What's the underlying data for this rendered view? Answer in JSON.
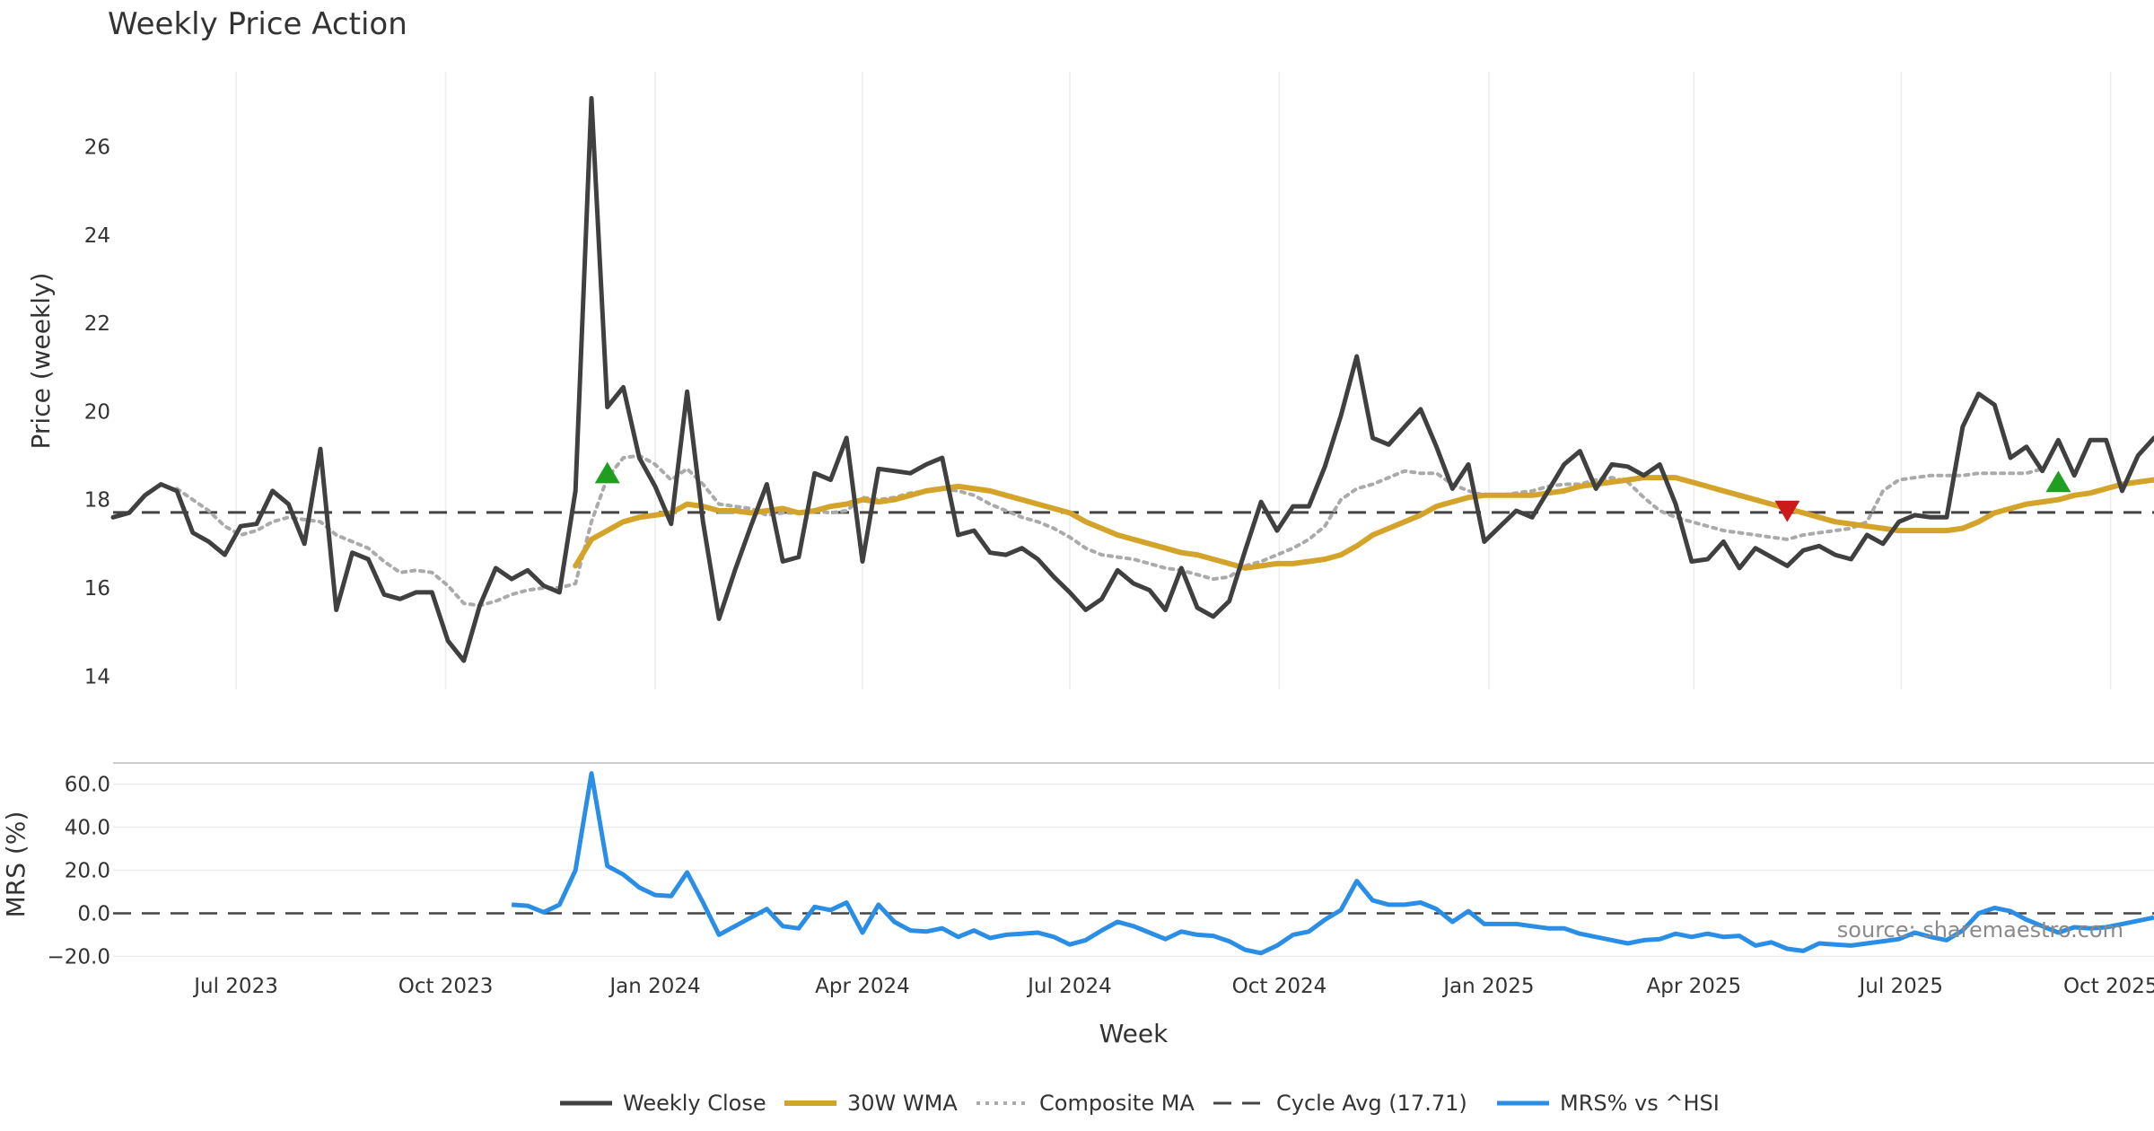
{
  "colors": {
    "close": "#404040",
    "wma": "#d4a32a",
    "composite": "#aaaaaa",
    "cycle": "#444444",
    "mrs": "#2a8ee6",
    "buy": "#1f9e1f",
    "sell": "#cc1a1a",
    "grid": "#ececec"
  },
  "chart_data": {
    "type": "line",
    "title": "Weekly Price Action",
    "ylabel": "Price (weekly)",
    "ylabel_bottom": "MRS (%)",
    "xlabel": "Week",
    "source": "source: sharemaestro.com",
    "start_date": "2023-05-08",
    "x_ticks": [
      "Jul 2023",
      "Oct 2023",
      "Jan 2024",
      "Apr 2024",
      "Jul 2024",
      "Oct 2024",
      "Jan 2025",
      "Apr 2025",
      "Jul 2025",
      "Oct 2025"
    ],
    "y_ticks": [
      "14",
      "16",
      "18",
      "20",
      "22",
      "24",
      "26"
    ],
    "y_ticks_bottom": [
      "−20.0",
      "0.0",
      "20.0",
      "40.0",
      "60.0"
    ],
    "ylim": [
      13.7,
      27.7
    ],
    "ylim_bottom": [
      -24,
      69
    ],
    "grid": true,
    "legend_position": "bottom-center",
    "legend": [
      "Weekly Close",
      "30W WMA",
      "Composite MA",
      "Cycle Avg (17.71)",
      "MRS% vs ^HSI"
    ],
    "cycle_avg": 17.71,
    "series": [
      {
        "name": "Weekly Close",
        "values": [
          17.6,
          17.7,
          18.1,
          18.35,
          18.2,
          17.25,
          17.05,
          16.75,
          17.4,
          17.45,
          18.2,
          17.9,
          17.0,
          19.15,
          15.5,
          16.8,
          16.65,
          15.85,
          15.75,
          15.9,
          15.9,
          14.8,
          14.35,
          15.6,
          16.45,
          16.2,
          16.4,
          16.05,
          15.9,
          18.2,
          27.1,
          20.1,
          20.55,
          18.95,
          18.3,
          17.45,
          20.45,
          17.5,
          15.3,
          16.4,
          17.4,
          18.35,
          16.6,
          16.7,
          18.6,
          18.45,
          19.4,
          16.6,
          18.7,
          18.65,
          18.6,
          18.8,
          18.95,
          17.2,
          17.3,
          16.8,
          16.75,
          16.9,
          16.65,
          16.25,
          15.9,
          15.5,
          15.75,
          16.4,
          16.1,
          15.95,
          15.5,
          16.45,
          15.55,
          15.35,
          15.7,
          16.85,
          17.95,
          17.3,
          17.85,
          17.85,
          18.75,
          19.9,
          21.25,
          19.4,
          19.25,
          19.65,
          20.05,
          19.2,
          18.25,
          18.8,
          17.05,
          17.4,
          17.75,
          17.6,
          18.2,
          18.8,
          19.1,
          18.25,
          18.8,
          18.75,
          18.55,
          18.8,
          17.9,
          16.6,
          16.65,
          17.05,
          16.45,
          16.9,
          16.7,
          16.5,
          16.85,
          16.95,
          16.75,
          16.65,
          17.2,
          17.0,
          17.5,
          17.65,
          17.6,
          17.6,
          19.65,
          20.4,
          20.15,
          18.95,
          19.2,
          18.65,
          19.35,
          18.55,
          19.35,
          19.35,
          18.2,
          19.0,
          19.4
        ]
      },
      {
        "name": "30W WMA",
        "start_index": 29,
        "values": [
          16.5,
          17.1,
          17.3,
          17.5,
          17.6,
          17.65,
          17.7,
          17.9,
          17.85,
          17.75,
          17.75,
          17.7,
          17.75,
          17.8,
          17.7,
          17.75,
          17.85,
          17.9,
          18.0,
          17.95,
          18.0,
          18.1,
          18.2,
          18.25,
          18.3,
          18.25,
          18.2,
          18.1,
          18.0,
          17.9,
          17.8,
          17.7,
          17.5,
          17.35,
          17.2,
          17.1,
          17.0,
          16.9,
          16.8,
          16.75,
          16.65,
          16.55,
          16.45,
          16.5,
          16.55,
          16.55,
          16.6,
          16.65,
          16.75,
          16.95,
          17.2,
          17.35,
          17.5,
          17.65,
          17.85,
          17.95,
          18.05,
          18.1,
          18.1,
          18.1,
          18.1,
          18.15,
          18.2,
          18.3,
          18.35,
          18.4,
          18.45,
          18.5,
          18.5,
          18.5,
          18.4,
          18.3,
          18.2,
          18.1,
          18.0,
          17.9,
          17.8,
          17.7,
          17.6,
          17.5,
          17.45,
          17.4,
          17.35,
          17.3,
          17.3,
          17.3,
          17.3,
          17.35,
          17.5,
          17.7,
          17.8,
          17.9,
          17.95,
          18.0,
          18.1,
          18.15,
          18.25,
          18.35,
          18.4,
          18.45,
          18.5
        ]
      },
      {
        "name": "Composite MA",
        "start_index": 4,
        "values": [
          18.25,
          18.0,
          17.75,
          17.4,
          17.2,
          17.3,
          17.5,
          17.6,
          17.55,
          17.5,
          17.2,
          17.05,
          16.9,
          16.6,
          16.35,
          16.4,
          16.35,
          16.05,
          15.65,
          15.6,
          15.7,
          15.85,
          15.95,
          16.0,
          16.0,
          16.1,
          17.5,
          18.5,
          18.95,
          19.0,
          18.8,
          18.45,
          18.7,
          18.35,
          17.9,
          17.85,
          17.8,
          17.65,
          17.7,
          17.7,
          17.75,
          17.7,
          17.75,
          18.05,
          18.0,
          18.05,
          18.15,
          18.2,
          18.25,
          18.2,
          18.1,
          17.9,
          17.75,
          17.6,
          17.5,
          17.35,
          17.15,
          16.9,
          16.75,
          16.7,
          16.65,
          16.55,
          16.45,
          16.4,
          16.3,
          16.2,
          16.25,
          16.5,
          16.6,
          16.75,
          16.9,
          17.1,
          17.4,
          18.0,
          18.25,
          18.35,
          18.5,
          18.65,
          18.6,
          18.6,
          18.35,
          18.2,
          18.1,
          18.1,
          18.15,
          18.2,
          18.3,
          18.35,
          18.35,
          18.45,
          18.5,
          18.4,
          18.05,
          17.75,
          17.6,
          17.5,
          17.4,
          17.3,
          17.25,
          17.2,
          17.15,
          17.1,
          17.2,
          17.25,
          17.3,
          17.35,
          17.5,
          18.2,
          18.45,
          18.5,
          18.55,
          18.55,
          18.55,
          18.6,
          18.6,
          18.6,
          18.6,
          18.7
        ]
      },
      {
        "name": "MRS% vs ^HSI",
        "axis": "bottom",
        "start_index": 25,
        "values": [
          4,
          3.5,
          0.5,
          4,
          20,
          65,
          22,
          18,
          12,
          8.5,
          8,
          19,
          5,
          -10,
          -6,
          -2,
          2,
          -6,
          -7,
          3,
          1.5,
          5,
          -9,
          4,
          -4,
          -8,
          -8.5,
          -7,
          -11,
          -8,
          -11.5,
          -10,
          -9.5,
          -9,
          -11,
          -14.5,
          -12.5,
          -8,
          -4,
          -6,
          -9,
          -12,
          -8.5,
          -10,
          -10.5,
          -13,
          -17,
          -18.5,
          -15,
          -10,
          -8.5,
          -3,
          1.5,
          15,
          6,
          4,
          4,
          5,
          2,
          -4,
          1,
          -5,
          -5,
          -5,
          -6,
          -7,
          -7,
          -9.5,
          -11,
          -12.5,
          -14,
          -12.5,
          -12,
          -9.5,
          -11,
          -9.5,
          -11,
          -10.5,
          -15,
          -13.5,
          -16.5,
          -17.5,
          -14,
          -14.5,
          -15,
          -14,
          -13,
          -12,
          -9,
          -11,
          -12.5,
          -8,
          0,
          2.5,
          1,
          -3,
          -6,
          -9,
          -6.5,
          -7,
          -6.5,
          -5,
          -3.5,
          -2
        ]
      }
    ],
    "markers": [
      {
        "type": "buy",
        "index": 31,
        "value": 18.6
      },
      {
        "type": "sell",
        "index": 105,
        "value": 17.75
      },
      {
        "type": "buy",
        "index": 122,
        "value": 18.4
      }
    ]
  }
}
